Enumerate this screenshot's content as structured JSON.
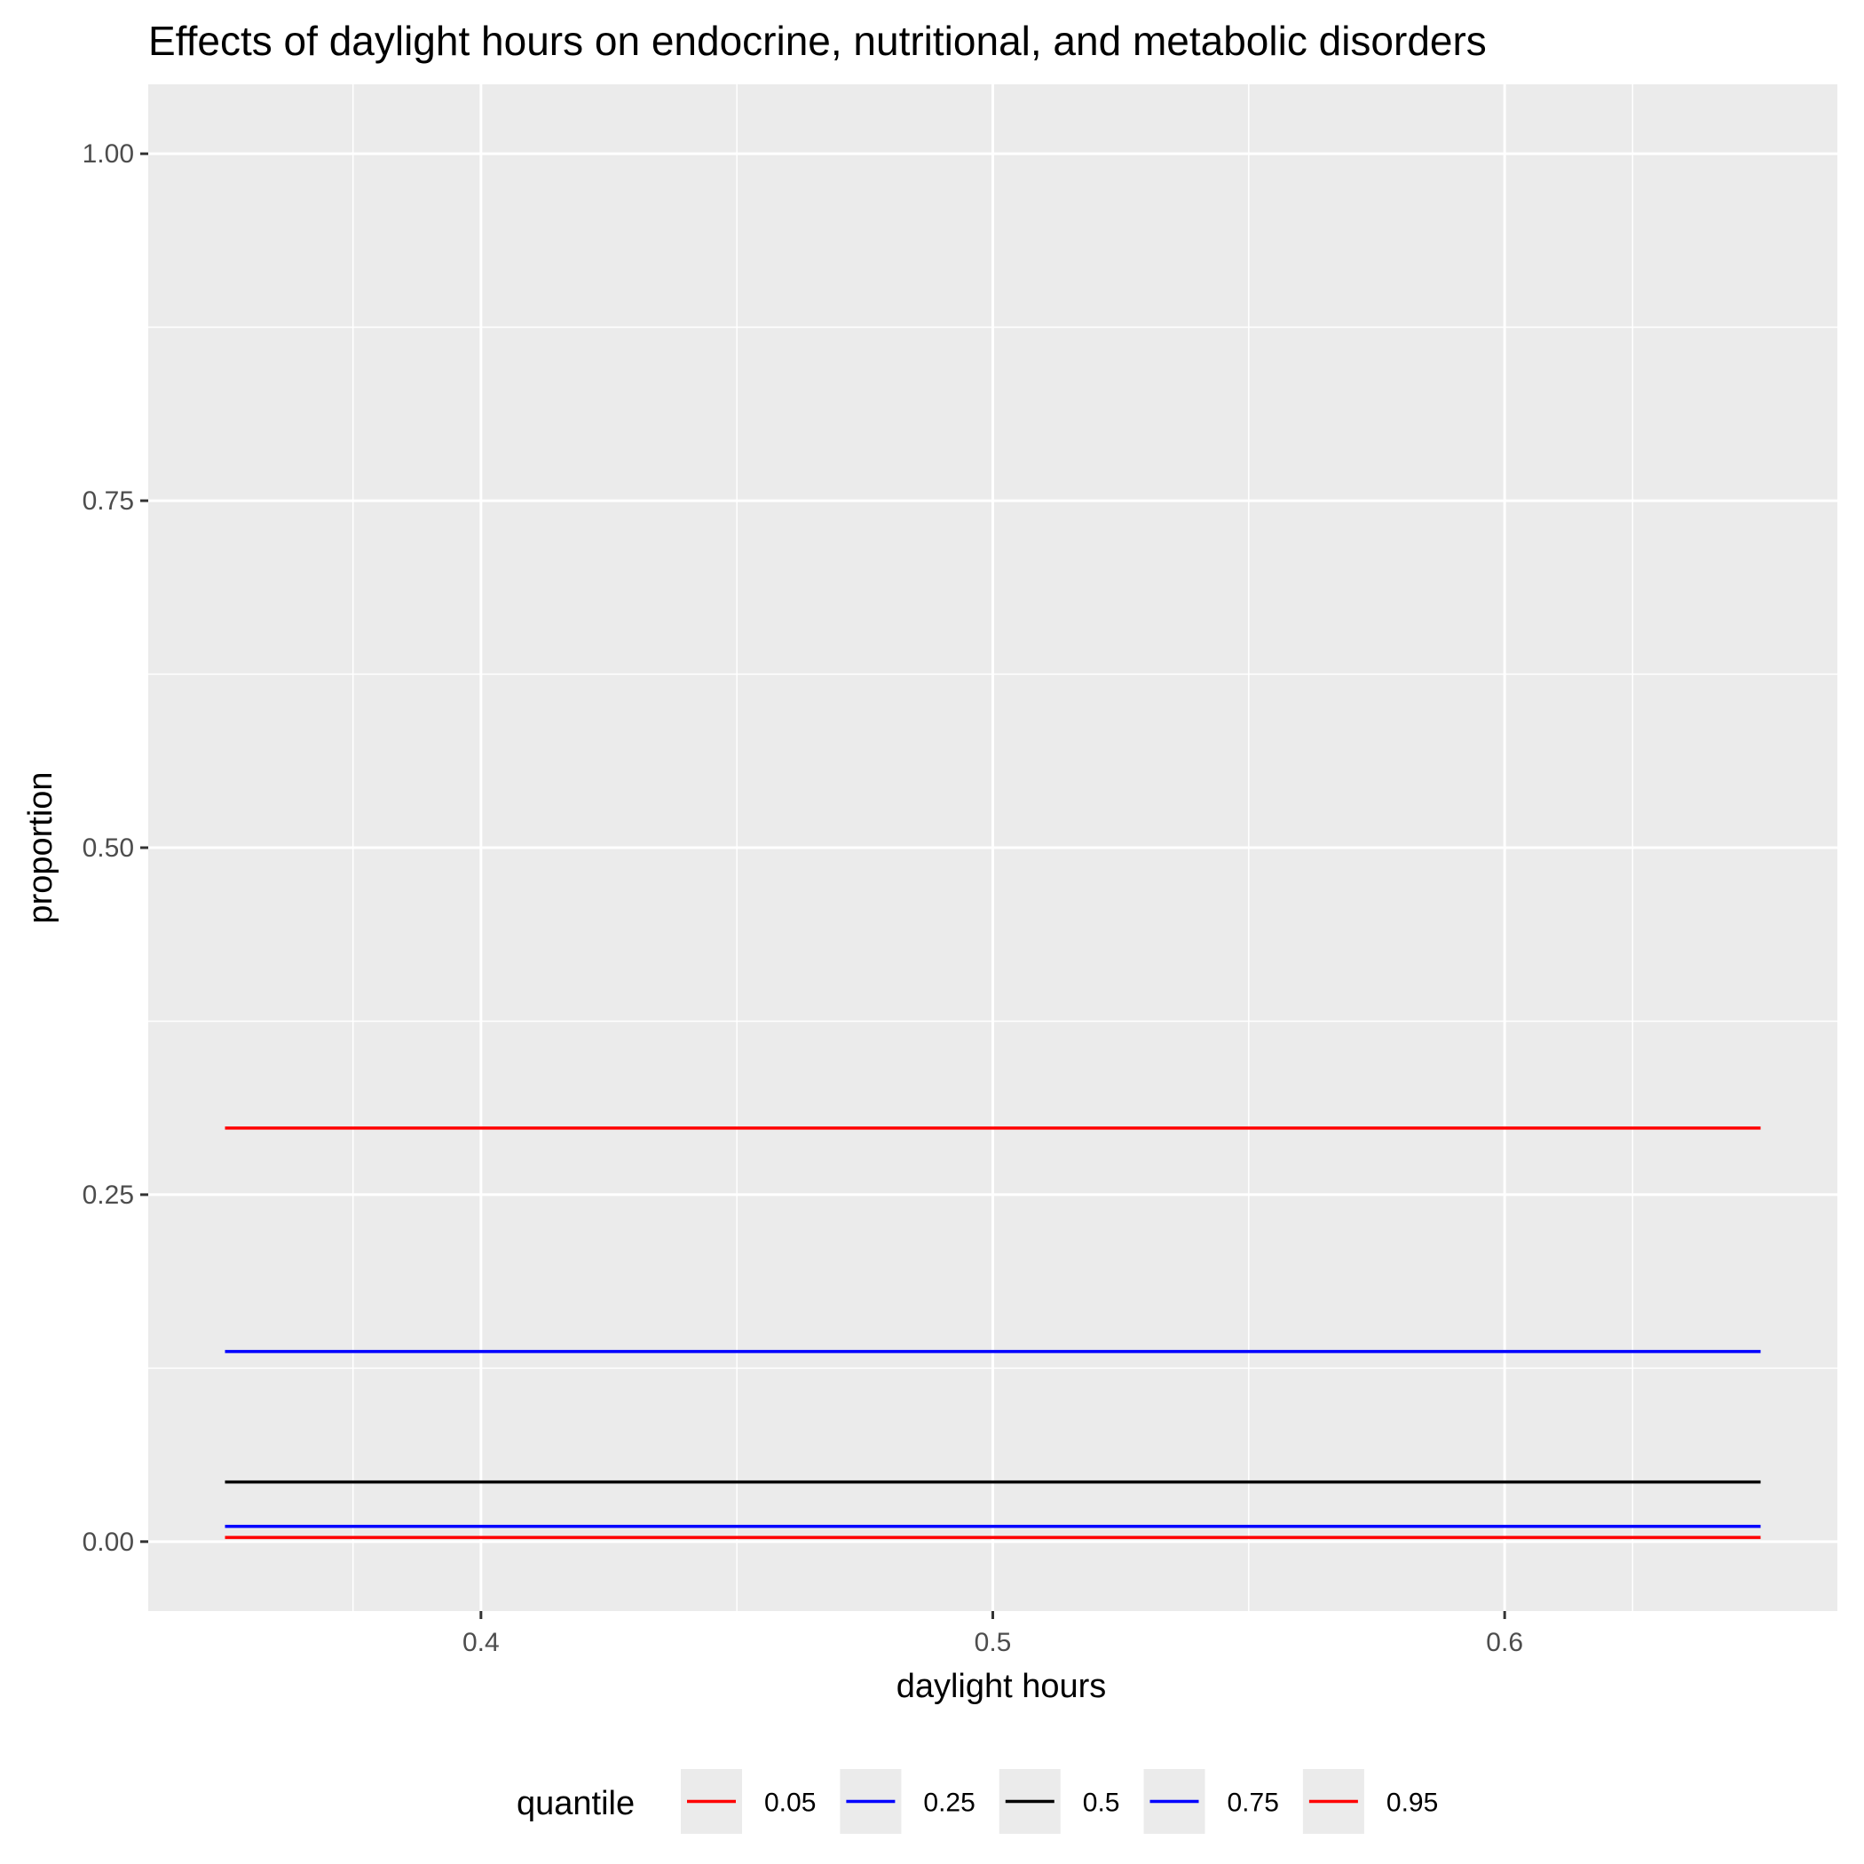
{
  "chart_data": {
    "type": "line",
    "title": "Effects of daylight hours on endocrine, nutritional, and metabolic disorders",
    "xlabel": "daylight hours",
    "ylabel": "proportion",
    "xlim": [
      0.335,
      0.665
    ],
    "ylim": [
      -0.05,
      1.05
    ],
    "x_ticks": [
      0.4,
      0.5,
      0.6
    ],
    "x_tick_labels": [
      "0.4",
      "0.5",
      "0.6"
    ],
    "y_ticks": [
      0.0,
      0.25,
      0.5,
      0.75,
      1.0
    ],
    "y_tick_labels": [
      "0.00",
      "0.25",
      "0.50",
      "0.75",
      "1.00"
    ],
    "grid": true,
    "legend": {
      "title": "quantile",
      "position": "bottom"
    },
    "series": [
      {
        "name": "0.05",
        "color": "#ff0000",
        "x": [
          0.35,
          0.65
        ],
        "y": [
          0.003,
          0.003
        ]
      },
      {
        "name": "0.25",
        "color": "#0000ff",
        "x": [
          0.35,
          0.65
        ],
        "y": [
          0.011,
          0.011
        ]
      },
      {
        "name": "0.5",
        "color": "#000000",
        "x": [
          0.35,
          0.65
        ],
        "y": [
          0.043,
          0.043
        ]
      },
      {
        "name": "0.75",
        "color": "#0000ff",
        "x": [
          0.35,
          0.65
        ],
        "y": [
          0.137,
          0.137
        ]
      },
      {
        "name": "0.95",
        "color": "#ff0000",
        "x": [
          0.35,
          0.65
        ],
        "y": [
          0.298,
          0.298
        ]
      }
    ]
  }
}
